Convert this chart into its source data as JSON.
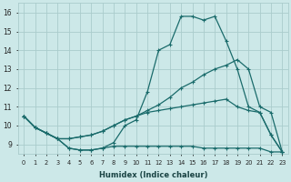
{
  "xlabel": "Humidex (Indice chaleur)",
  "background_color": "#cce8e8",
  "grid_color": "#aacccc",
  "line_color": "#1a6b6b",
  "x_hours": [
    0,
    1,
    2,
    3,
    4,
    5,
    6,
    7,
    8,
    9,
    10,
    11,
    12,
    13,
    14,
    15,
    16,
    17,
    18,
    19,
    20,
    21,
    22,
    23
  ],
  "line1": [
    10.5,
    9.9,
    9.6,
    9.3,
    8.8,
    8.7,
    8.7,
    8.8,
    9.1,
    10.0,
    10.3,
    11.8,
    14.0,
    14.3,
    15.8,
    15.8,
    15.6,
    15.8,
    14.5,
    13.0,
    11.0,
    10.7,
    9.5,
    8.6
  ],
  "line2": [
    10.5,
    9.9,
    9.6,
    9.3,
    9.3,
    9.4,
    9.5,
    9.7,
    10.0,
    10.3,
    10.5,
    10.8,
    11.1,
    11.5,
    12.0,
    12.3,
    12.7,
    13.0,
    13.2,
    13.5,
    13.0,
    11.0,
    10.7,
    8.6
  ],
  "line3": [
    10.5,
    9.9,
    9.6,
    9.3,
    9.3,
    9.4,
    9.5,
    9.7,
    10.0,
    10.3,
    10.5,
    10.7,
    10.8,
    10.9,
    11.0,
    11.1,
    11.2,
    11.3,
    11.4,
    11.0,
    10.8,
    10.7,
    9.5,
    8.6
  ],
  "line4": [
    10.5,
    9.9,
    9.6,
    9.3,
    8.8,
    8.7,
    8.7,
    8.8,
    8.9,
    8.9,
    8.9,
    8.9,
    8.9,
    8.9,
    8.9,
    8.9,
    8.8,
    8.8,
    8.8,
    8.8,
    8.8,
    8.8,
    8.6,
    8.6
  ],
  "ylim": [
    8.5,
    16.5
  ],
  "xlim": [
    -0.5,
    23.5
  ],
  "yticks": [
    9,
    10,
    11,
    12,
    13,
    14,
    15,
    16
  ],
  "xticks": [
    0,
    1,
    2,
    3,
    4,
    5,
    6,
    7,
    8,
    9,
    10,
    11,
    12,
    13,
    14,
    15,
    16,
    17,
    18,
    19,
    20,
    21,
    22,
    23
  ]
}
